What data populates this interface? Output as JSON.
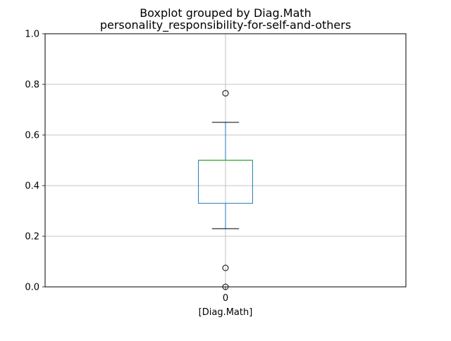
{
  "chart_data": {
    "type": "boxplot",
    "title": "Boxplot grouped by Diag.Math",
    "subtitle": "personality_responsibility-for-self-and-others",
    "xlabel": "[Diag.Math]",
    "ylabel": "",
    "categories": [
      "0"
    ],
    "ylim": [
      0,
      1
    ],
    "yticks": [
      "0.0",
      "0.2",
      "0.4",
      "0.6",
      "0.8",
      "1.0"
    ],
    "grid": true,
    "boxes": [
      {
        "category": "0",
        "whisker_low": 0.23,
        "q1": 0.33,
        "median": 0.5,
        "q3": 0.5,
        "whisker_high": 0.65,
        "outliers": [
          0.765,
          0.075,
          0.0
        ]
      }
    ],
    "colors": {
      "box": "#1f77b4",
      "median": "#2ca02c",
      "whisker": "#1f77b4",
      "cap": "#000000",
      "grid": "#b0b0b0"
    }
  }
}
